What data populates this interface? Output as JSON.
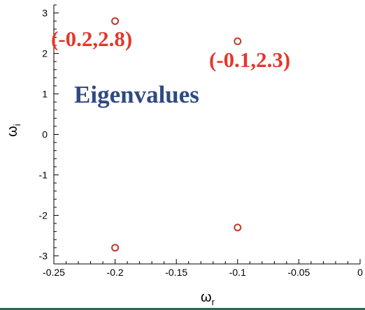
{
  "chart_data": {
    "type": "scatter",
    "title": "Eigenvalues",
    "xlabel": "ω",
    "xlabel_sub": "r",
    "ylabel": "ω",
    "ylabel_sub": "i",
    "xlim": [
      -0.25,
      0
    ],
    "ylim": [
      -3.2,
      3.2
    ],
    "x_ticks": [
      "-0.25",
      "-0.2",
      "-0.15",
      "-0.1",
      "-0.05",
      "0"
    ],
    "y_ticks": [
      "-3",
      "-2",
      "-1",
      "0",
      "1",
      "2",
      "3"
    ],
    "grid": false,
    "marker": "open-circle",
    "marker_color": "#c0392b",
    "points": [
      {
        "x": -0.2,
        "y": 2.8
      },
      {
        "x": -0.2,
        "y": -2.8
      },
      {
        "x": -0.1,
        "y": 2.3
      },
      {
        "x": -0.1,
        "y": -2.3
      }
    ],
    "annotations": [
      {
        "text": "(-0.2,2.8)",
        "color": "#e3382b"
      },
      {
        "text": "(-0.1,2.3)",
        "color": "#e3382b"
      }
    ],
    "headline_color": "#2f4a7f"
  }
}
